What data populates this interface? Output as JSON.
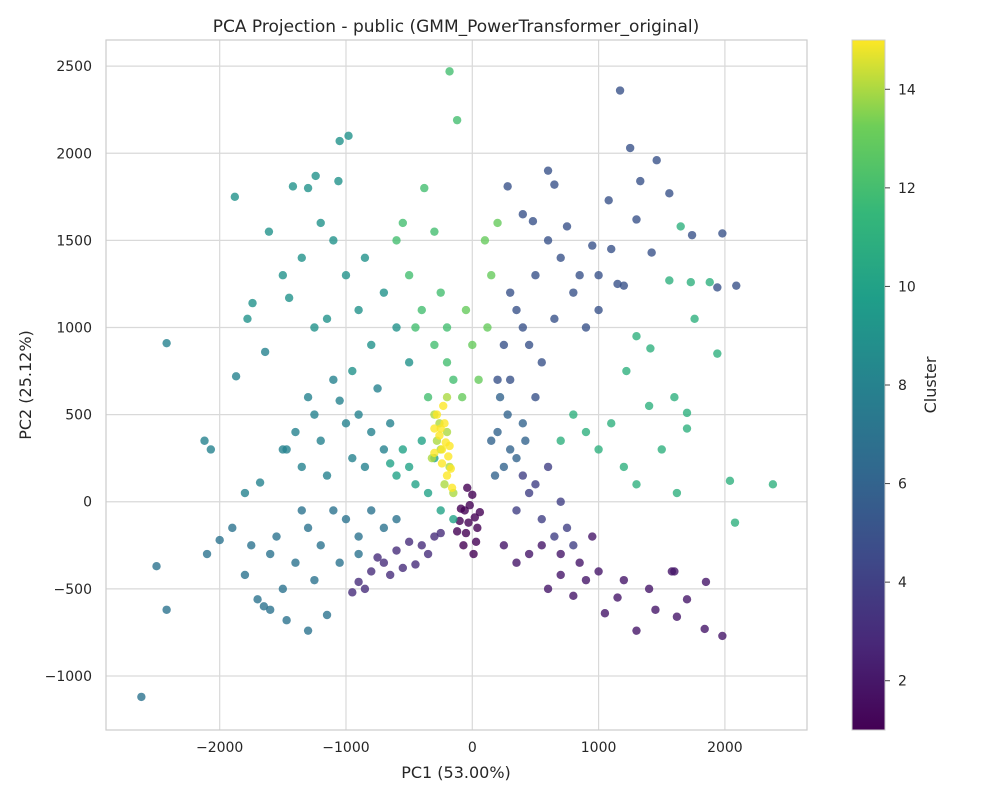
{
  "chart_data": {
    "type": "scatter",
    "title": "PCA Projection - public (GMM_PowerTransformer_original)",
    "xlabel": "PC1 (53.00%)",
    "ylabel": "PC2 (25.12%)",
    "xlim": [
      -2900,
      2650
    ],
    "ylim": [
      -1310,
      2650
    ],
    "xticks": [
      -2000,
      -1000,
      0,
      1000,
      2000
    ],
    "xtick_labels": [
      "−2000",
      "−1000",
      "0",
      "1000",
      "2000"
    ],
    "yticks": [
      -1000,
      -500,
      0,
      500,
      1000,
      1500,
      2000,
      2500
    ],
    "ytick_labels": [
      "−1000",
      "−500",
      "0",
      "500",
      "1000",
      "1500",
      "2000",
      "2500"
    ],
    "grid": true,
    "colormap": "viridis",
    "colorbar": {
      "label": "Cluster",
      "range": [
        1,
        15
      ],
      "ticks": [
        2,
        4,
        6,
        8,
        10,
        12,
        14
      ],
      "tick_labels": [
        "2",
        "4",
        "6",
        "8",
        "10",
        "12",
        "14"
      ]
    },
    "series": [
      {
        "cluster": 1,
        "points": [
          [
            -60,
            -50
          ],
          [
            -30,
            -120
          ],
          [
            -90,
            -40
          ],
          [
            20,
            -90
          ],
          [
            -50,
            -180
          ],
          [
            40,
            -150
          ],
          [
            -20,
            -20
          ],
          [
            -100,
            -110
          ],
          [
            60,
            -60
          ],
          [
            -70,
            -250
          ],
          [
            0,
            40
          ],
          [
            -40,
            80
          ],
          [
            30,
            -230
          ],
          [
            -120,
            -170
          ],
          [
            10,
            -300
          ]
        ]
      },
      {
        "cluster": 2,
        "points": [
          [
            700,
            -300
          ],
          [
            850,
            -350
          ],
          [
            550,
            -250
          ],
          [
            1000,
            -400
          ],
          [
            950,
            -200
          ],
          [
            450,
            -300
          ],
          [
            1200,
            -450
          ],
          [
            1400,
            -500
          ],
          [
            1600,
            -400
          ],
          [
            1850,
            -460
          ],
          [
            1980,
            -770
          ],
          [
            1840,
            -730
          ],
          [
            1620,
            -660
          ],
          [
            1300,
            -740
          ],
          [
            1050,
            -640
          ],
          [
            800,
            -540
          ],
          [
            600,
            -500
          ],
          [
            350,
            -350
          ],
          [
            250,
            -250
          ],
          [
            1150,
            -550
          ],
          [
            1450,
            -620
          ],
          [
            1580,
            -400
          ],
          [
            1700,
            -560
          ],
          [
            900,
            -450
          ],
          [
            700,
            -420
          ]
        ]
      },
      {
        "cluster": 3,
        "points": [
          [
            -600,
            -280
          ],
          [
            -700,
            -350
          ],
          [
            -500,
            -230
          ],
          [
            -800,
            -400
          ],
          [
            -400,
            -250
          ],
          [
            -900,
            -460
          ],
          [
            -300,
            -200
          ],
          [
            -750,
            -320
          ],
          [
            -550,
            -380
          ],
          [
            -650,
            -420
          ],
          [
            -350,
            -300
          ],
          [
            -450,
            -360
          ],
          [
            -250,
            -180
          ],
          [
            -850,
            -500
          ],
          [
            -950,
            -520
          ]
        ]
      },
      {
        "cluster": 4,
        "points": [
          [
            500,
            100
          ],
          [
            600,
            200
          ],
          [
            450,
            50
          ],
          [
            700,
            0
          ],
          [
            550,
            -100
          ],
          [
            350,
            -50
          ],
          [
            750,
            -150
          ],
          [
            650,
            -200
          ],
          [
            400,
            150
          ],
          [
            800,
            -250
          ]
        ]
      },
      {
        "cluster": 5,
        "points": [
          [
            300,
            700
          ],
          [
            450,
            900
          ],
          [
            350,
            1100
          ],
          [
            500,
            1300
          ],
          [
            600,
            1500
          ],
          [
            700,
            1400
          ],
          [
            800,
            1200
          ],
          [
            900,
            1000
          ],
          [
            1000,
            1300
          ],
          [
            1100,
            1450
          ],
          [
            1200,
            1240
          ],
          [
            1250,
            2030
          ],
          [
            1170,
            2360
          ],
          [
            1330,
            1840
          ],
          [
            1460,
            1960
          ],
          [
            1560,
            1770
          ],
          [
            1300,
            1620
          ],
          [
            1080,
            1730
          ],
          [
            1980,
            1540
          ],
          [
            1740,
            1530
          ],
          [
            1420,
            1430
          ],
          [
            2090,
            1240
          ],
          [
            1940,
            1230
          ],
          [
            400,
            1650
          ],
          [
            600,
            1900
          ],
          [
            650,
            1820
          ],
          [
            280,
            1810
          ],
          [
            480,
            1610
          ],
          [
            750,
            1580
          ],
          [
            950,
            1470
          ],
          [
            250,
            900
          ],
          [
            200,
            700
          ],
          [
            550,
            800
          ],
          [
            650,
            1050
          ],
          [
            400,
            1000
          ],
          [
            300,
            1200
          ],
          [
            850,
            1300
          ],
          [
            1000,
            1100
          ],
          [
            1150,
            1250
          ],
          [
            500,
            600
          ]
        ]
      },
      {
        "cluster": 6,
        "points": [
          [
            200,
            400
          ],
          [
            300,
            300
          ],
          [
            250,
            200
          ],
          [
            150,
            350
          ],
          [
            400,
            450
          ],
          [
            350,
            250
          ],
          [
            180,
            150
          ],
          [
            280,
            500
          ],
          [
            420,
            350
          ],
          [
            220,
            600
          ]
        ]
      },
      {
        "cluster": 7,
        "points": [
          [
            -700,
            -150
          ],
          [
            -900,
            -200
          ],
          [
            -1000,
            -100
          ],
          [
            -1200,
            -250
          ],
          [
            -1400,
            -350
          ],
          [
            -1600,
            -300
          ],
          [
            -1800,
            -420
          ],
          [
            -2000,
            -220
          ],
          [
            -2100,
            -300
          ],
          [
            -2500,
            -370
          ],
          [
            -2420,
            -620
          ],
          [
            -2620,
            -1120
          ],
          [
            -1650,
            -600
          ],
          [
            -1470,
            -680
          ],
          [
            -1300,
            -740
          ],
          [
            -1150,
            -650
          ],
          [
            -800,
            -50
          ],
          [
            -1100,
            -50
          ],
          [
            -1300,
            -150
          ],
          [
            -1500,
            -500
          ],
          [
            -600,
            -100
          ],
          [
            -1250,
            -450
          ],
          [
            -1700,
            -560
          ],
          [
            -1900,
            -150
          ],
          [
            -1550,
            -200
          ],
          [
            -1050,
            -350
          ],
          [
            -900,
            -300
          ],
          [
            -1350,
            -50
          ],
          [
            -1750,
            -250
          ],
          [
            -1600,
            -620
          ]
        ]
      },
      {
        "cluster": 8,
        "points": [
          [
            -800,
            400
          ],
          [
            -900,
            500
          ],
          [
            -700,
            300
          ],
          [
            -1000,
            450
          ],
          [
            -1200,
            350
          ],
          [
            -1400,
            400
          ],
          [
            -1500,
            300
          ],
          [
            -1300,
            600
          ],
          [
            -1100,
            700
          ],
          [
            -950,
            250
          ],
          [
            -2420,
            910
          ],
          [
            -2120,
            350
          ],
          [
            -2070,
            300
          ],
          [
            -1870,
            720
          ],
          [
            -1640,
            860
          ],
          [
            -1470,
            300
          ],
          [
            -1800,
            50
          ],
          [
            -1680,
            110
          ],
          [
            -1250,
            500
          ],
          [
            -1050,
            580
          ],
          [
            -650,
            450
          ],
          [
            -850,
            200
          ],
          [
            -750,
            650
          ],
          [
            -1150,
            150
          ],
          [
            -1350,
            200
          ]
        ]
      },
      {
        "cluster": 9,
        "points": [
          [
            -800,
            900
          ],
          [
            -900,
            1100
          ],
          [
            -1000,
            1300
          ],
          [
            -1100,
            1500
          ],
          [
            -1200,
            1600
          ],
          [
            -1300,
            1800
          ],
          [
            -1050,
            2070
          ],
          [
            -980,
            2100
          ],
          [
            -1060,
            1840
          ],
          [
            -1240,
            1870
          ],
          [
            -1880,
            1750
          ],
          [
            -1610,
            1550
          ],
          [
            -1420,
            1810
          ],
          [
            -1740,
            1140
          ],
          [
            -1780,
            1050
          ],
          [
            -1500,
            1300
          ],
          [
            -1350,
            1400
          ],
          [
            -700,
            1200
          ],
          [
            -600,
            1000
          ],
          [
            -500,
            800
          ],
          [
            -1150,
            1050
          ],
          [
            -950,
            750
          ],
          [
            -1250,
            1000
          ],
          [
            -850,
            1400
          ],
          [
            -1450,
            1170
          ]
        ]
      },
      {
        "cluster": 10,
        "points": [
          [
            -400,
            350
          ],
          [
            -500,
            200
          ],
          [
            -300,
            250
          ],
          [
            -600,
            150
          ],
          [
            -450,
            100
          ],
          [
            -350,
            50
          ],
          [
            -550,
            300
          ],
          [
            -250,
            -50
          ],
          [
            -150,
            -100
          ],
          [
            -650,
            220
          ]
        ]
      },
      {
        "cluster": 11,
        "points": [
          [
            900,
            400
          ],
          [
            1000,
            300
          ],
          [
            800,
            500
          ],
          [
            1100,
            450
          ],
          [
            700,
            350
          ],
          [
            1200,
            200
          ],
          [
            1300,
            100
          ],
          [
            1400,
            550
          ],
          [
            1600,
            600
          ],
          [
            1700,
            420
          ],
          [
            2380,
            100
          ],
          [
            2040,
            120
          ],
          [
            2080,
            -120
          ],
          [
            1940,
            850
          ],
          [
            1730,
            1260
          ],
          [
            1760,
            1050
          ],
          [
            1650,
            1580
          ],
          [
            1560,
            1270
          ],
          [
            1410,
            880
          ],
          [
            1700,
            510
          ],
          [
            1220,
            750
          ],
          [
            1300,
            950
          ],
          [
            1500,
            300
          ],
          [
            1620,
            50
          ],
          [
            1880,
            1260
          ]
        ]
      },
      {
        "cluster": 12,
        "points": [
          [
            -300,
            900
          ],
          [
            -400,
            1100
          ],
          [
            -500,
            1300
          ],
          [
            -550,
            1600
          ],
          [
            -380,
            1800
          ],
          [
            -250,
            1200
          ],
          [
            -200,
            1000
          ],
          [
            -150,
            700
          ],
          [
            -350,
            600
          ],
          [
            -450,
            1000
          ],
          [
            -180,
            2470
          ],
          [
            -120,
            2190
          ],
          [
            -300,
            1550
          ],
          [
            -600,
            1500
          ],
          [
            -200,
            800
          ]
        ]
      },
      {
        "cluster": 13,
        "points": [
          [
            -50,
            1100
          ],
          [
            100,
            1500
          ],
          [
            200,
            1600
          ],
          [
            0,
            900
          ],
          [
            50,
            700
          ],
          [
            150,
            1300
          ],
          [
            -80,
            600
          ],
          [
            120,
            1000
          ]
        ]
      },
      {
        "cluster": 14,
        "points": [
          [
            -200,
            400
          ],
          [
            -250,
            300
          ],
          [
            -300,
            500
          ],
          [
            -180,
            200
          ],
          [
            -220,
            100
          ],
          [
            -280,
            350
          ],
          [
            -150,
            50
          ],
          [
            -320,
            250
          ],
          [
            -260,
            450
          ],
          [
            -200,
            600
          ]
        ]
      },
      {
        "cluster": 15,
        "points": [
          [
            -220,
            450
          ],
          [
            -260,
            380
          ],
          [
            -180,
            320
          ],
          [
            -300,
            280
          ],
          [
            -240,
            220
          ],
          [
            -200,
            150
          ],
          [
            -160,
            80
          ],
          [
            -280,
            500
          ],
          [
            -230,
            550
          ],
          [
            -190,
            260
          ],
          [
            -250,
            420
          ],
          [
            -170,
            190
          ],
          [
            -210,
            340
          ],
          [
            -300,
            420
          ],
          [
            -240,
            300
          ]
        ]
      }
    ]
  }
}
